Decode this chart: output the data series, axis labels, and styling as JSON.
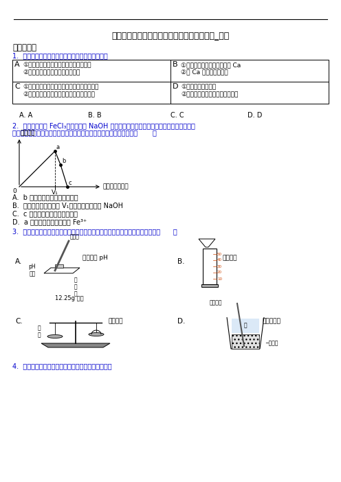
{
  "title": "贵州省普通高中学重点高中自主招生化学试题_图文",
  "section1": "一、选择题",
  "q1_intro": "1.  下列有关生产生活中的化学知识整理有错误的是",
  "table_A1": "①一氧化碳会与血红蛋白结合，使人中毒",
  "table_A2": "②煤炉上放一壶水能防止煤气中毒",
  "table_B1": "①人体含量最多的金属元素是 Ca",
  "table_B2": "②缺 Ca 会引起骨质疏松",
  "table_C1": "①灌装汽水时加压，是为了增加气体溶解的量",
  "table_C2": "②将鸡蛋壳加入食醋，会产生二氧化碳气体",
  "table_D1": "①明矾具有净水作用",
  "table_D2": "②活性炭能吸附水中的色素和异味",
  "q1_opt_A": "A. A",
  "q1_opt_B": "B. B",
  "q1_opt_C": "C. C",
  "q1_opt_D": "D. D",
  "q2_intro1": "2.  向一定质量的 FeCl₃溶液中滴加 NaOH 溶液一段时间后，改为滴加稀硫酸，所得沉淀质",
  "q2_intro2": "量随加入试剂总体积的变化趋势如图所示，下列有关说法不正确的是（       ）",
  "graph_ylabel": "沉淀质量",
  "graph_xlabel": "加入试剂总体积",
  "q2_opt_A": "A.  b 点时所加试剂一定是稀硫酸",
  "q2_opt_B": "B.  加入试剂总体积大于 V₁时，溶液中不存在 NaOH",
  "q2_opt_C": "C.  c 点时溶液中的溶质不止是盐",
  "q2_opt_D": "D.  a 点时溶液中有可能存在 Fe³⁺",
  "q3_intro": "3.  正确规范的操作是实验成功和人身安全的重要保证。下列实验操作正确的是（      ）",
  "q3_A_label": "测定溶液 pH",
  "q3_B_label": "配制溶液",
  "q3_C_label": "称量固体",
  "q3_D_label": "稀释浓硫酸",
  "q4_intro": "4.  下表物质中含有少量杂质，其中除杂方法正确的是",
  "label_A": "A",
  "label_B": "B",
  "label_C": "C",
  "label_D": "D",
  "glassrod": "玻璃棒",
  "ph_paper": "pH\n试纸",
  "glass_piece": "玻\n璃\n片",
  "solid_label": "12.25g 固体",
  "paper_label": "纸\n片",
  "no_stop_stir": "不断搅拌",
  "water_label": "水",
  "conc_acid": "─浓硫酸",
  "v1_label": "V₁",
  "zero_label": "0",
  "title_color": "#000000",
  "blue_color": "#0000cd",
  "black": "#000000",
  "gray_light": "#d3d3d3",
  "gray_dark": "#808080"
}
